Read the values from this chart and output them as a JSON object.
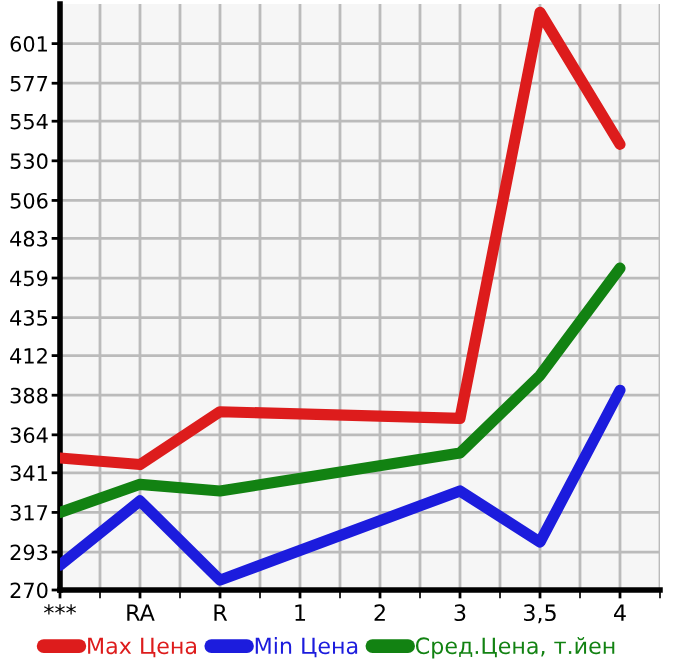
{
  "chart_data": {
    "type": "line",
    "categories": [
      "***",
      "RA",
      "R",
      "1",
      "2",
      "3",
      "3,5",
      "4"
    ],
    "series": [
      {
        "name": "Max Цена",
        "color": "#dd1c1c",
        "values": [
          350,
          346,
          378,
          null,
          null,
          374,
          620,
          540
        ]
      },
      {
        "name": "Min Цена",
        "color": "#1c1cdd",
        "values": [
          285,
          324,
          276,
          null,
          null,
          330,
          299,
          391
        ]
      },
      {
        "name": "Сред.Цена, т.йен",
        "color": "#128212",
        "values": [
          317,
          334,
          330,
          null,
          null,
          353,
          400,
          465
        ]
      }
    ],
    "ylim": [
      270,
      625
    ],
    "yticks": [
      270,
      293,
      317,
      341,
      364,
      388,
      412,
      435,
      459,
      483,
      506,
      530,
      554,
      577,
      601
    ],
    "grid": true,
    "legend": "bottom",
    "marker": "none",
    "line_style": "solid"
  }
}
